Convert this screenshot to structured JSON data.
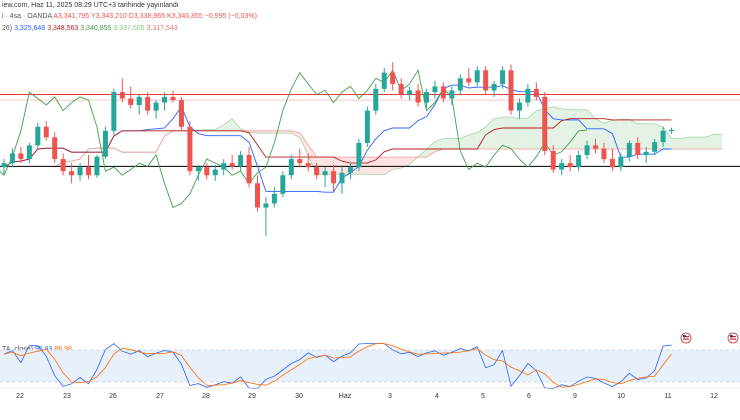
{
  "header": {
    "line1_prefix": "iew.com, Haz 11, 2025 08:29 UTC+3 tarihinde yayınlandı",
    "line2_prefix": "i · 4sa · OANDA",
    "ohlc": {
      "a_label": "A",
      "a_value": "3,341,795",
      "y_label": "Y",
      "y_value": "3,343,210",
      "d_label": "D",
      "d_value": "3,338,965",
      "k_label": "K",
      "k_value": "3,340,855",
      "change": "−0,995 (−0,03%)"
    },
    "ichimoku_prefix": "26)",
    "ichimoku_values": [
      "3,325,648",
      "3,348,563",
      "3,340,855",
      "3,337,505",
      "3,317,543"
    ]
  },
  "stoch": {
    "label": "TA, close)",
    "k_value": "95,93",
    "d_value": "86,98"
  },
  "colors": {
    "up": "#26a69a",
    "down": "#ef5350",
    "conversion": "#2962ff",
    "base": "#b71c1c",
    "lagging": "#43a047",
    "cloud_green": "#e3f2e5",
    "cloud_red": "#fde3e3",
    "hline_red": "#e53935",
    "hline_black": "#000000",
    "stoch_k": "#2962ff",
    "stoch_d": "#ff6d00"
  },
  "chart_data": {
    "type": "candlestick",
    "instrument": "OANDA 4sa",
    "x_axis_labels": [
      "22",
      "23",
      "26",
      "27",
      "28",
      "29",
      "30",
      "Haz",
      "3",
      "4",
      "5",
      "6",
      "9",
      "10",
      "11",
      "12"
    ],
    "y_range_estimate": [
      3180,
      3450
    ],
    "horizontal_lines": [
      3385,
      3296
    ],
    "candles": [
      [
        3295,
        3305,
        3285,
        3300
      ],
      [
        3300,
        3318,
        3295,
        3312
      ],
      [
        3312,
        3320,
        3300,
        3305
      ],
      [
        3305,
        3325,
        3300,
        3322
      ],
      [
        3322,
        3350,
        3318,
        3345
      ],
      [
        3345,
        3352,
        3328,
        3332
      ],
      [
        3332,
        3338,
        3300,
        3305
      ],
      [
        3305,
        3312,
        3285,
        3290
      ],
      [
        3290,
        3300,
        3275,
        3285
      ],
      [
        3285,
        3300,
        3278,
        3295
      ],
      [
        3295,
        3310,
        3280,
        3285
      ],
      [
        3285,
        3310,
        3282,
        3308
      ],
      [
        3308,
        3345,
        3305,
        3340
      ],
      [
        3340,
        3392,
        3335,
        3388
      ],
      [
        3388,
        3405,
        3375,
        3380
      ],
      [
        3380,
        3395,
        3368,
        3372
      ],
      [
        3372,
        3385,
        3360,
        3382
      ],
      [
        3382,
        3388,
        3360,
        3365
      ],
      [
        3365,
        3378,
        3355,
        3375
      ],
      [
        3375,
        3388,
        3365,
        3382
      ],
      [
        3382,
        3390,
        3375,
        3378
      ],
      [
        3378,
        3382,
        3340,
        3345
      ],
      [
        3345,
        3352,
        3285,
        3290
      ],
      [
        3290,
        3298,
        3278,
        3295
      ],
      [
        3295,
        3300,
        3280,
        3285
      ],
      [
        3285,
        3298,
        3278,
        3292
      ],
      [
        3292,
        3305,
        3285,
        3300
      ],
      [
        3300,
        3310,
        3292,
        3296
      ],
      [
        3296,
        3315,
        3290,
        3310
      ],
      [
        3310,
        3320,
        3270,
        3275
      ],
      [
        3275,
        3285,
        3240,
        3245
      ],
      [
        3245,
        3258,
        3210,
        3250
      ],
      [
        3250,
        3270,
        3245,
        3262
      ],
      [
        3262,
        3290,
        3258,
        3285
      ],
      [
        3285,
        3310,
        3280,
        3305
      ],
      [
        3305,
        3318,
        3295,
        3300
      ],
      [
        3300,
        3312,
        3290,
        3295
      ],
      [
        3295,
        3300,
        3280,
        3285
      ],
      [
        3285,
        3295,
        3270,
        3290
      ],
      [
        3290,
        3298,
        3265,
        3275
      ],
      [
        3275,
        3295,
        3262,
        3288
      ],
      [
        3288,
        3300,
        3280,
        3295
      ],
      [
        3295,
        3330,
        3290,
        3325
      ],
      [
        3325,
        3370,
        3320,
        3365
      ],
      [
        3365,
        3398,
        3360,
        3392
      ],
      [
        3392,
        3418,
        3388,
        3412
      ],
      [
        3412,
        3425,
        3390,
        3398
      ],
      [
        3398,
        3405,
        3380,
        3385
      ],
      [
        3385,
        3395,
        3378,
        3390
      ],
      [
        3390,
        3398,
        3370,
        3375
      ],
      [
        3375,
        3392,
        3368,
        3388
      ],
      [
        3388,
        3402,
        3380,
        3395
      ],
      [
        3395,
        3400,
        3375,
        3380
      ],
      [
        3380,
        3395,
        3372,
        3390
      ],
      [
        3390,
        3410,
        3385,
        3405
      ],
      [
        3405,
        3418,
        3395,
        3400
      ],
      [
        3400,
        3420,
        3395,
        3415
      ],
      [
        3415,
        3420,
        3385,
        3390
      ],
      [
        3390,
        3402,
        3382,
        3398
      ],
      [
        3398,
        3420,
        3392,
        3415
      ],
      [
        3415,
        3422,
        3360,
        3365
      ],
      [
        3365,
        3380,
        3355,
        3375
      ],
      [
        3375,
        3398,
        3370,
        3392
      ],
      [
        3392,
        3400,
        3378,
        3382
      ],
      [
        3382,
        3388,
        3310,
        3315
      ],
      [
        3315,
        3322,
        3288,
        3292
      ],
      [
        3292,
        3305,
        3285,
        3300
      ],
      [
        3300,
        3310,
        3290,
        3295
      ],
      [
        3295,
        3315,
        3290,
        3310
      ],
      [
        3310,
        3328,
        3305,
        3322
      ],
      [
        3322,
        3330,
        3312,
        3318
      ],
      [
        3318,
        3325,
        3300,
        3305
      ],
      [
        3305,
        3318,
        3290,
        3295
      ],
      [
        3295,
        3312,
        3290,
        3308
      ],
      [
        3308,
        3328,
        3302,
        3325
      ],
      [
        3325,
        3332,
        3305,
        3310
      ],
      [
        3310,
        3320,
        3300,
        3314
      ],
      [
        3314,
        3330,
        3310,
        3326
      ],
      [
        3326,
        3345,
        3320,
        3340
      ],
      [
        3340,
        3344,
        3336,
        3341
      ]
    ]
  }
}
